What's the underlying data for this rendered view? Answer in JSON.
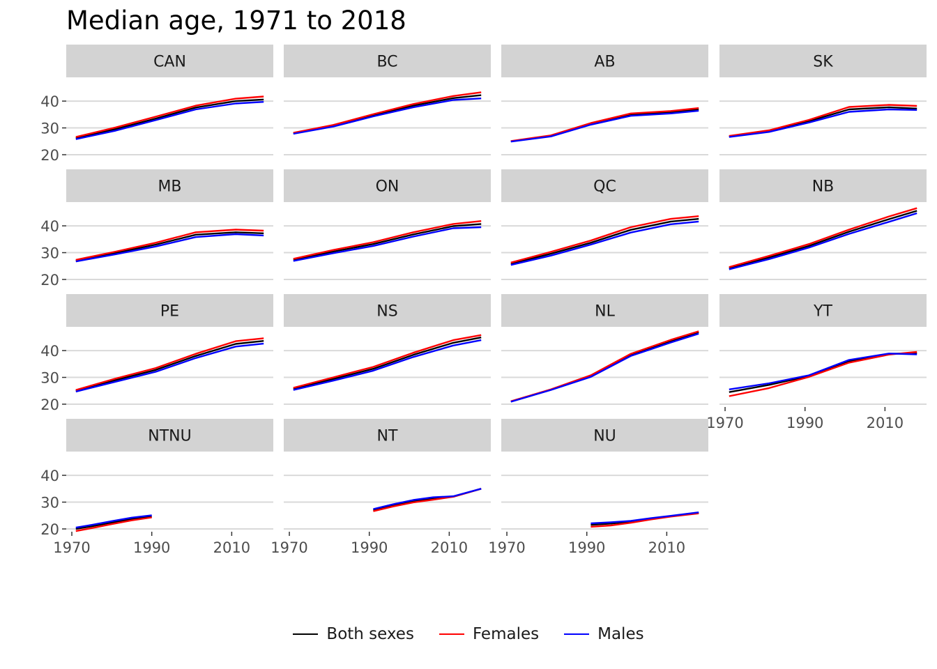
{
  "chart_data": {
    "type": "line",
    "title": "Median age, 1971 to 2018",
    "xlabel": "",
    "ylabel": "",
    "xlim": [
      1971,
      2018
    ],
    "ylim": [
      20,
      46
    ],
    "x_ticks": [
      1970,
      1990,
      2010
    ],
    "y_ticks": [
      20,
      30,
      40
    ],
    "grid": true,
    "legend_position": "bottom",
    "legend": [
      {
        "name": "Both sexes",
        "color": "#000000"
      },
      {
        "name": "Females",
        "color": "#ff0000"
      },
      {
        "name": "Males",
        "color": "#0000ff"
      }
    ],
    "panels": [
      {
        "label": "CAN",
        "series": [
          {
            "name": "Both sexes",
            "x": [
              1971,
              1981,
              1991,
              2001,
              2011,
              2018
            ],
            "y": [
              26.2,
              29.6,
              33.5,
              37.6,
              40.0,
              40.6
            ]
          },
          {
            "name": "Females",
            "x": [
              1971,
              1981,
              1991,
              2001,
              2011,
              2018
            ],
            "y": [
              26.6,
              30.2,
              34.2,
              38.3,
              40.9,
              41.7
            ]
          },
          {
            "name": "Males",
            "x": [
              1971,
              1981,
              1991,
              2001,
              2011,
              2018
            ],
            "y": [
              25.8,
              29.0,
              32.9,
              36.9,
              39.1,
              39.7
            ]
          }
        ]
      },
      {
        "label": "BC",
        "series": [
          {
            "name": "Both sexes",
            "x": [
              1971,
              1981,
              1991,
              2001,
              2011,
              2018
            ],
            "y": [
              28.0,
              30.8,
              34.7,
              38.3,
              41.1,
              42.2
            ]
          },
          {
            "name": "Females",
            "x": [
              1971,
              1981,
              1991,
              2001,
              2011,
              2018
            ],
            "y": [
              28.2,
              31.1,
              35.1,
              38.9,
              41.9,
              43.3
            ]
          },
          {
            "name": "Males",
            "x": [
              1971,
              1981,
              1991,
              2001,
              2011,
              2018
            ],
            "y": [
              27.8,
              30.5,
              34.3,
              37.7,
              40.4,
              41.0
            ]
          }
        ]
      },
      {
        "label": "AB",
        "series": [
          {
            "name": "Both sexes",
            "x": [
              1971,
              1981,
              1991,
              2001,
              2011,
              2018
            ],
            "y": [
              25.0,
              27.0,
              31.5,
              34.9,
              35.9,
              36.9
            ]
          },
          {
            "name": "Females",
            "x": [
              1971,
              1981,
              1991,
              2001,
              2011,
              2018
            ],
            "y": [
              25.1,
              27.2,
              31.8,
              35.4,
              36.3,
              37.4
            ]
          },
          {
            "name": "Males",
            "x": [
              1971,
              1981,
              1991,
              2001,
              2011,
              2018
            ],
            "y": [
              24.9,
              26.8,
              31.2,
              34.5,
              35.4,
              36.4
            ]
          }
        ]
      },
      {
        "label": "SK",
        "series": [
          {
            "name": "Both sexes",
            "x": [
              1971,
              1981,
              1991,
              2001,
              2011,
              2018
            ],
            "y": [
              26.8,
              28.8,
              32.5,
              36.9,
              37.7,
              37.2
            ]
          },
          {
            "name": "Females",
            "x": [
              1971,
              1981,
              1991,
              2001,
              2011,
              2018
            ],
            "y": [
              27.0,
              29.1,
              33.0,
              37.8,
              38.6,
              38.2
            ]
          },
          {
            "name": "Males",
            "x": [
              1971,
              1981,
              1991,
              2001,
              2011,
              2018
            ],
            "y": [
              26.6,
              28.5,
              32.0,
              36.0,
              36.9,
              36.7
            ]
          }
        ]
      },
      {
        "label": "MB",
        "series": [
          {
            "name": "Both sexes",
            "x": [
              1971,
              1981,
              1991,
              2001,
              2011,
              2018
            ],
            "y": [
              27.0,
              29.9,
              33.0,
              36.7,
              37.6,
              37.2
            ]
          },
          {
            "name": "Females",
            "x": [
              1971,
              1981,
              1991,
              2001,
              2011,
              2018
            ],
            "y": [
              27.3,
              30.4,
              33.7,
              37.6,
              38.6,
              38.2
            ]
          },
          {
            "name": "Males",
            "x": [
              1971,
              1981,
              1991,
              2001,
              2011,
              2018
            ],
            "y": [
              26.7,
              29.4,
              32.3,
              35.8,
              36.9,
              36.4
            ]
          }
        ]
      },
      {
        "label": "ON",
        "series": [
          {
            "name": "Both sexes",
            "x": [
              1971,
              1981,
              1991,
              2001,
              2011,
              2018
            ],
            "y": [
              27.3,
              30.4,
              33.2,
              36.8,
              39.9,
              40.7
            ]
          },
          {
            "name": "Females",
            "x": [
              1971,
              1981,
              1991,
              2001,
              2011,
              2018
            ],
            "y": [
              27.7,
              31.0,
              33.9,
              37.6,
              40.7,
              41.8
            ]
          },
          {
            "name": "Males",
            "x": [
              1971,
              1981,
              1991,
              2001,
              2011,
              2018
            ],
            "y": [
              26.9,
              29.8,
              32.5,
              36.0,
              39.1,
              39.5
            ]
          }
        ]
      },
      {
        "label": "QC",
        "series": [
          {
            "name": "Both sexes",
            "x": [
              1971,
              1981,
              1991,
              2001,
              2011,
              2018
            ],
            "y": [
              25.8,
              29.6,
              33.7,
              38.5,
              41.6,
              42.6
            ]
          },
          {
            "name": "Females",
            "x": [
              1971,
              1981,
              1991,
              2001,
              2011,
              2018
            ],
            "y": [
              26.3,
              30.3,
              34.5,
              39.5,
              42.6,
              43.6
            ]
          },
          {
            "name": "Males",
            "x": [
              1971,
              1981,
              1991,
              2001,
              2011,
              2018
            ],
            "y": [
              25.4,
              28.9,
              33.0,
              37.5,
              40.6,
              41.6
            ]
          }
        ]
      },
      {
        "label": "NB",
        "series": [
          {
            "name": "Both sexes",
            "x": [
              1971,
              1981,
              1991,
              2001,
              2011,
              2018
            ],
            "y": [
              24.2,
              28.2,
              32.5,
              37.8,
              42.5,
              45.6
            ]
          },
          {
            "name": "Females",
            "x": [
              1971,
              1981,
              1991,
              2001,
              2011,
              2018
            ],
            "y": [
              24.6,
              28.8,
              33.2,
              38.6,
              43.5,
              46.6
            ]
          },
          {
            "name": "Males",
            "x": [
              1971,
              1981,
              1991,
              2001,
              2011,
              2018
            ],
            "y": [
              23.8,
              27.6,
              31.9,
              37.0,
              41.5,
              44.7
            ]
          }
        ]
      },
      {
        "label": "PE",
        "series": [
          {
            "name": "Both sexes",
            "x": [
              1971,
              1981,
              1991,
              2001,
              2011,
              2018
            ],
            "y": [
              25.0,
              29.0,
              32.8,
              38.0,
              42.5,
              43.6
            ]
          },
          {
            "name": "Females",
            "x": [
              1971,
              1981,
              1991,
              2001,
              2011,
              2018
            ],
            "y": [
              25.3,
              29.6,
              33.5,
              38.8,
              43.5,
              44.6
            ]
          },
          {
            "name": "Males",
            "x": [
              1971,
              1981,
              1991,
              2001,
              2011,
              2018
            ],
            "y": [
              24.7,
              28.4,
              32.1,
              37.2,
              41.5,
              42.6
            ]
          }
        ]
      },
      {
        "label": "NS",
        "series": [
          {
            "name": "Both sexes",
            "x": [
              1971,
              1981,
              1991,
              2001,
              2011,
              2018
            ],
            "y": [
              25.7,
              29.4,
              33.2,
              38.4,
              42.9,
              44.9
            ]
          },
          {
            "name": "Females",
            "x": [
              1971,
              1981,
              1991,
              2001,
              2011,
              2018
            ],
            "y": [
              26.1,
              30.0,
              33.9,
              39.2,
              43.9,
              45.8
            ]
          },
          {
            "name": "Males",
            "x": [
              1971,
              1981,
              1991,
              2001,
              2011,
              2018
            ],
            "y": [
              25.3,
              28.8,
              32.5,
              37.6,
              41.9,
              43.9
            ]
          }
        ]
      },
      {
        "label": "NL",
        "series": [
          {
            "name": "Both sexes",
            "x": [
              1971,
              1981,
              1991,
              2001,
              2011,
              2018
            ],
            "y": [
              21.0,
              25.4,
              30.5,
              38.4,
              43.5,
              46.8
            ]
          },
          {
            "name": "Females",
            "x": [
              1971,
              1981,
              1991,
              2001,
              2011,
              2018
            ],
            "y": [
              21.1,
              25.5,
              30.8,
              38.8,
              44.0,
              47.2
            ]
          },
          {
            "name": "Males",
            "x": [
              1971,
              1981,
              1991,
              2001,
              2011,
              2018
            ],
            "y": [
              20.9,
              25.3,
              30.2,
              38.0,
              43.0,
              46.3
            ]
          }
        ]
      },
      {
        "label": "YT",
        "series": [
          {
            "name": "Both sexes",
            "x": [
              1971,
              1981,
              1991,
              2001,
              2011,
              2018
            ],
            "y": [
              24.5,
              27.2,
              30.5,
              36.0,
              38.8,
              39.0
            ]
          },
          {
            "name": "Females",
            "x": [
              1971,
              1981,
              1991,
              2001,
              2011,
              2018
            ],
            "y": [
              23.0,
              26.0,
              30.2,
              35.5,
              38.5,
              39.5
            ]
          },
          {
            "name": "Males",
            "x": [
              1971,
              1981,
              1991,
              2001,
              2011,
              2018
            ],
            "y": [
              25.5,
              27.8,
              30.8,
              36.5,
              38.9,
              38.6
            ]
          }
        ]
      },
      {
        "label": "NTNU",
        "series": [
          {
            "name": "Both sexes",
            "x": [
              1971,
              1975,
              1980,
              1985,
              1990
            ],
            "y": [
              20.0,
              21.0,
              22.4,
              23.7,
              24.6
            ]
          },
          {
            "name": "Females",
            "x": [
              1971,
              1975,
              1980,
              1985,
              1990
            ],
            "y": [
              19.2,
              20.3,
              21.8,
              23.2,
              24.3
            ]
          },
          {
            "name": "Males",
            "x": [
              1971,
              1975,
              1980,
              1985,
              1990
            ],
            "y": [
              20.5,
              21.5,
              22.9,
              24.2,
              25.1
            ]
          }
        ]
      },
      {
        "label": "NT",
        "series": [
          {
            "name": "Both sexes",
            "x": [
              1991,
              1996,
              2001,
              2006,
              2011,
              2018
            ],
            "y": [
              27.0,
              28.8,
              30.2,
              31.5,
              32.0,
              35.0
            ]
          },
          {
            "name": "Females",
            "x": [
              1991,
              1996,
              2001,
              2006,
              2011,
              2018
            ],
            "y": [
              26.6,
              28.4,
              29.9,
              30.9,
              32.0,
              35.0
            ]
          },
          {
            "name": "Males",
            "x": [
              1991,
              1996,
              2001,
              2006,
              2011,
              2018
            ],
            "y": [
              27.4,
              29.2,
              30.8,
              31.8,
              32.2,
              35.0
            ]
          }
        ]
      },
      {
        "label": "NU",
        "series": [
          {
            "name": "Both sexes",
            "x": [
              1991,
              1996,
              2001,
              2006,
              2011,
              2018
            ],
            "y": [
              21.5,
              22.0,
              22.7,
              23.8,
              24.7,
              26.0
            ]
          },
          {
            "name": "Females",
            "x": [
              1991,
              1996,
              2001,
              2006,
              2011,
              2018
            ],
            "y": [
              20.8,
              21.3,
              22.3,
              23.5,
              24.6,
              25.8
            ]
          },
          {
            "name": "Males",
            "x": [
              1991,
              1996,
              2001,
              2006,
              2011,
              2018
            ],
            "y": [
              22.1,
              22.5,
              23.0,
              24.0,
              24.9,
              26.2
            ]
          }
        ]
      }
    ]
  }
}
